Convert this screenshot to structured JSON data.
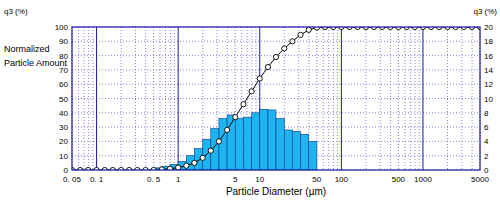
{
  "chart_data": {
    "type": "combo",
    "xlabel": "Particle Diameter (µm)",
    "ylabel": "Normalized Particle Amount",
    "y_unit": "q3 (%)",
    "y2_unit": "q3 (%)",
    "log": "x",
    "grid": true,
    "xlim": [
      0.05,
      5000
    ],
    "xticks": [
      {
        "value": 0.05,
        "label": "0. 05"
      },
      {
        "value": 0.1,
        "label": "0. 1"
      },
      {
        "value": 0.5,
        "label": "0. 5"
      },
      1,
      5,
      10,
      50,
      100,
      500,
      1000,
      5000
    ],
    "ylim": [
      0,
      100
    ],
    "yticks": [
      0,
      10,
      20,
      30,
      40,
      50,
      60,
      70,
      80,
      90,
      100
    ],
    "y2lim": [
      0,
      20
    ],
    "y2ticks": [
      0,
      2,
      4,
      6,
      8,
      10,
      12,
      14,
      16,
      18,
      20
    ],
    "series": [
      {
        "type": "histogram",
        "axis": "y2",
        "color": "#1eb4f0",
        "bins": [
          0.5,
          0.631,
          0.794,
          1,
          1.26,
          1.58,
          2,
          2.51,
          3.16,
          3.98,
          5.01,
          6.31,
          7.94,
          10,
          12.6,
          15.8,
          20,
          25.1,
          31.6,
          39.8,
          50.1
        ],
        "values": [
          0.3,
          0.5,
          0.8,
          1.2,
          2.0,
          3.0,
          4.3,
          5.8,
          7.2,
          7.7,
          7.2,
          7.4,
          8.0,
          8.5,
          8.4,
          7.2,
          5.6,
          5.4,
          5.0,
          4.0
        ]
      },
      {
        "type": "line",
        "marker": "circle",
        "color": "#000000",
        "x": [
          0.05,
          0.063,
          0.079,
          0.1,
          0.126,
          0.158,
          0.2,
          0.251,
          0.316,
          0.398,
          0.5,
          0.631,
          0.794,
          1,
          1.26,
          1.58,
          2,
          2.51,
          3.16,
          3.98,
          5.01,
          6.31,
          7.94,
          10,
          12.6,
          15.8,
          20,
          25.1,
          31.6,
          39.8,
          50.1,
          63.1,
          79.4,
          100,
          126,
          158,
          200,
          251,
          316,
          398,
          501,
          631,
          794,
          1000,
          1260,
          1580,
          2000,
          2510,
          3160,
          3980,
          5000
        ],
        "values": [
          0,
          0,
          0,
          0,
          0,
          0,
          0,
          0,
          0,
          0,
          0,
          0.4,
          0.9,
          1.7,
          3,
          5,
          8.5,
          13.5,
          20,
          28,
          37,
          46,
          55,
          64,
          72,
          79,
          85,
          90,
          94.5,
          98,
          99.6,
          100,
          100,
          100,
          100,
          100,
          100,
          100,
          100,
          100,
          100,
          100,
          100,
          100,
          100,
          100,
          100,
          100,
          100,
          100,
          100
        ]
      }
    ]
  }
}
